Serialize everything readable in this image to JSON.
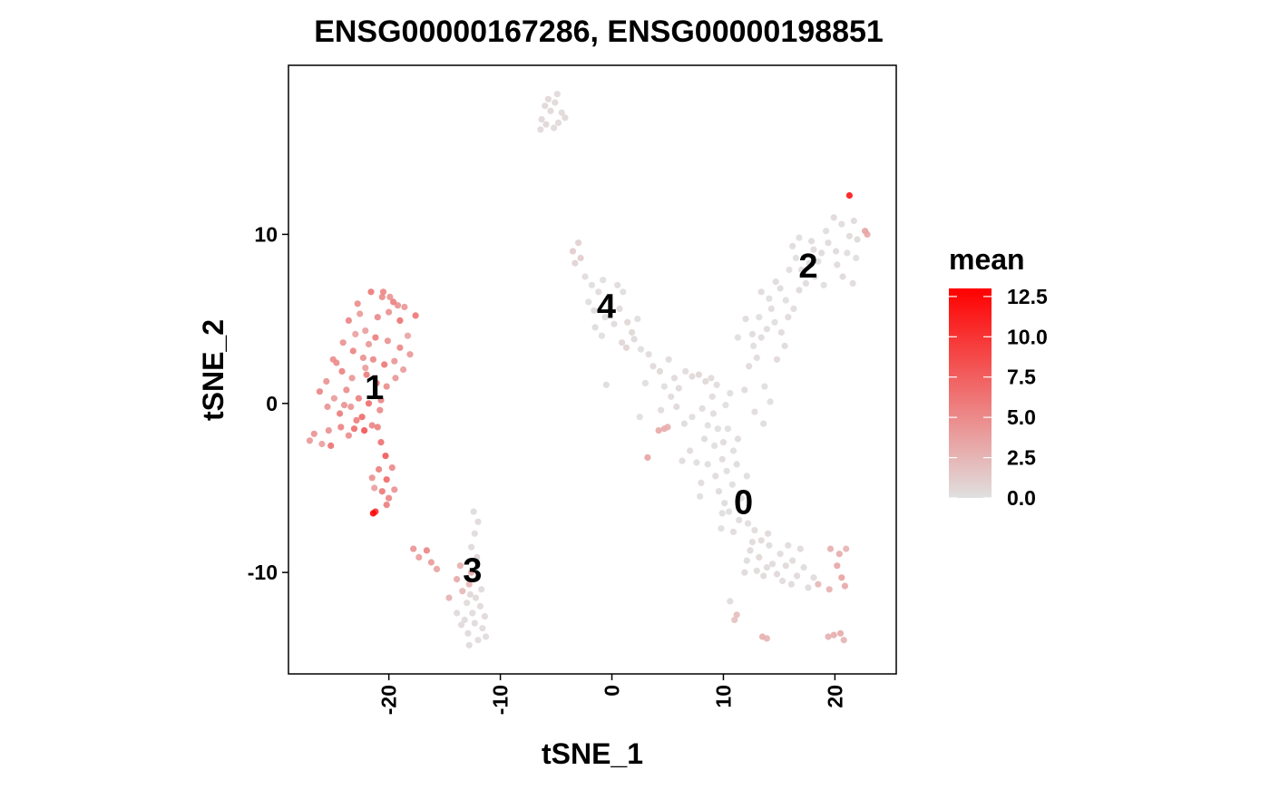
{
  "chart_data": {
    "type": "scatter",
    "title": "ENSG00000167286, ENSG00000198851",
    "xlabel": "tSNE_1",
    "ylabel": "tSNE_2",
    "xlim": [
      -29,
      25.5
    ],
    "ylim": [
      -16,
      20
    ],
    "x_ticks": [
      -20,
      -10,
      0,
      10,
      20
    ],
    "y_ticks": [
      -10,
      0,
      10
    ],
    "x_tick_labels": [
      "-20",
      "-10",
      "0",
      "10",
      "20"
    ],
    "y_tick_labels": [
      "-10",
      "0",
      "10"
    ],
    "grid": false,
    "legend": {
      "title": "mean",
      "position": "right",
      "min": 0,
      "max": 13,
      "ticks": [
        0,
        2.5,
        5,
        7.5,
        10,
        12.5
      ],
      "tick_labels": [
        "0.0",
        "2.5",
        "5.0",
        "7.5",
        "10.0",
        "12.5"
      ],
      "color_low": "#e0e0e0",
      "color_high": "#ff0000"
    },
    "cluster_labels": [
      {
        "label": "0",
        "x": 11.8,
        "y": -5.9
      },
      {
        "label": "1",
        "x": -21.3,
        "y": 0.9
      },
      {
        "label": "2",
        "x": 17.6,
        "y": 8.1
      },
      {
        "label": "3",
        "x": -12.5,
        "y": -9.9
      },
      {
        "label": "4",
        "x": -0.5,
        "y": 5.7
      }
    ],
    "points": [
      [
        -5.5,
        17.3,
        0.5
      ],
      [
        -6.3,
        16.8,
        0.5
      ],
      [
        -4.8,
        16.6,
        0.4
      ],
      [
        -5.1,
        17.8,
        0.5
      ],
      [
        -4.5,
        17.2,
        0.4
      ],
      [
        -6.0,
        17.6,
        0.5
      ],
      [
        -5.2,
        16.3,
        0.4
      ],
      [
        -4.2,
        16.9,
        0.5
      ],
      [
        -6.4,
        16.2,
        0.4
      ],
      [
        -5.7,
        18.0,
        0.5
      ],
      [
        -4.9,
        18.3,
        0.4
      ],
      [
        -5.9,
        16.5,
        0.5
      ],
      [
        -3.5,
        9.0,
        1.2
      ],
      [
        -3.0,
        9.5,
        1.0
      ],
      [
        -2.8,
        8.6,
        1.1
      ],
      [
        -3.3,
        8.3,
        0.8
      ],
      [
        -2.4,
        7.5,
        0.3
      ],
      [
        -1.8,
        7.0,
        0.2
      ],
      [
        -1.2,
        6.6,
        0.3
      ],
      [
        -0.8,
        7.3,
        0.2
      ],
      [
        -0.2,
        6.2,
        0.4
      ],
      [
        0.5,
        7.0,
        0.3
      ],
      [
        1.0,
        6.6,
        0.2
      ],
      [
        0.7,
        5.6,
        0.3
      ],
      [
        -0.6,
        5.1,
        0.2
      ],
      [
        0.2,
        4.7,
        0.3
      ],
      [
        1.4,
        4.8,
        0.6
      ],
      [
        1.8,
        4.2,
        0.5
      ],
      [
        2.3,
        5.0,
        0.2
      ],
      [
        -1.5,
        4.5,
        0.3
      ],
      [
        -0.9,
        4.0,
        0.2
      ],
      [
        0.9,
        3.6,
        0.6
      ],
      [
        1.3,
        3.3,
        0.7
      ],
      [
        2.0,
        3.8,
        0.4
      ],
      [
        2.6,
        3.2,
        0.2
      ],
      [
        -2.1,
        6.0,
        0.2
      ],
      [
        -1.6,
        5.5,
        0.3
      ],
      [
        3.3,
        2.9,
        0.3
      ],
      [
        3.7,
        2.2,
        0.4
      ],
      [
        4.3,
        1.9,
        0.5
      ],
      [
        5.1,
        2.6,
        0.3
      ],
      [
        5.6,
        1.5,
        0.4
      ],
      [
        4.7,
        1.0,
        0.2
      ],
      [
        5.3,
        0.4,
        0.3
      ],
      [
        6.0,
        0.9,
        0.4
      ],
      [
        5.8,
        -0.2,
        0.5
      ],
      [
        6.6,
        1.9,
        0.3
      ],
      [
        7.2,
        1.6,
        0.4
      ],
      [
        7.8,
        1.7,
        0.6
      ],
      [
        8.4,
        1.3,
        0.5
      ],
      [
        8.9,
        1.5,
        0.3
      ],
      [
        9.4,
        1.1,
        0.3
      ],
      [
        4.4,
        -0.4,
        0.3
      ],
      [
        4.2,
        -1.6,
        3.2
      ],
      [
        4.7,
        -1.5,
        3.0
      ],
      [
        5.0,
        -1.4,
        2.8
      ],
      [
        2.5,
        -0.8,
        0.2
      ],
      [
        3.0,
        1.2,
        0.2
      ],
      [
        3.2,
        -3.2,
        3.5
      ],
      [
        -0.5,
        1.1,
        0.3
      ],
      [
        7.2,
        -0.8,
        0.2
      ],
      [
        8.1,
        -0.3,
        0.3
      ],
      [
        8.6,
        -1.3,
        0.2
      ],
      [
        9.1,
        -0.6,
        0.3
      ],
      [
        9.5,
        -1.5,
        0.2
      ],
      [
        8.3,
        -2.1,
        0.3
      ],
      [
        9.2,
        -2.5,
        0.2
      ],
      [
        10.0,
        -2.3,
        0.3
      ],
      [
        10.4,
        -1.5,
        0.2
      ],
      [
        10.9,
        -2.8,
        0.2
      ],
      [
        9.9,
        -3.3,
        0.3
      ],
      [
        8.6,
        -3.6,
        0.2
      ],
      [
        9.3,
        -4.3,
        0.3
      ],
      [
        10.3,
        -4.0,
        0.2
      ],
      [
        11.2,
        -3.6,
        0.3
      ],
      [
        10.8,
        -4.8,
        0.2
      ],
      [
        9.6,
        -5.2,
        0.3
      ],
      [
        11.6,
        -5.6,
        0.2
      ],
      [
        10.5,
        -6.4,
        0.2
      ],
      [
        11.4,
        -6.9,
        0.3
      ],
      [
        12.2,
        -7.1,
        0.2
      ],
      [
        9.9,
        -6.5,
        0.2
      ],
      [
        10.9,
        -7.6,
        0.3
      ],
      [
        7.0,
        -2.8,
        0.3
      ],
      [
        7.6,
        -3.5,
        0.2
      ],
      [
        8.0,
        -4.7,
        0.3
      ],
      [
        10.2,
        -0.1,
        0.2
      ],
      [
        10.6,
        0.6,
        0.2
      ],
      [
        11.3,
        -2.1,
        0.3
      ],
      [
        12.1,
        -4.3,
        0.2
      ],
      [
        9.0,
        0.4,
        0.3
      ],
      [
        9.8,
        -7.4,
        0.2
      ],
      [
        6.5,
        -1.2,
        0.3
      ],
      [
        7.9,
        -5.5,
        0.2
      ],
      [
        6.3,
        -3.4,
        0.3
      ],
      [
        10.1,
        -5.9,
        0.3
      ],
      [
        12.8,
        -7.5,
        0.3
      ],
      [
        13.4,
        -8.1,
        0.4
      ],
      [
        14.1,
        -8.4,
        0.3
      ],
      [
        12.4,
        -8.7,
        0.4
      ],
      [
        13.2,
        -9.1,
        0.5
      ],
      [
        14.4,
        -9.5,
        0.4
      ],
      [
        15.1,
        -8.9,
        0.3
      ],
      [
        15.6,
        -9.6,
        0.4
      ],
      [
        16.2,
        -9.3,
        0.3
      ],
      [
        14.8,
        -10.1,
        0.5
      ],
      [
        16.6,
        -10.2,
        0.4
      ],
      [
        17.2,
        -9.7,
        0.3
      ],
      [
        16.1,
        -10.7,
        0.4
      ],
      [
        17.6,
        -10.9,
        0.3
      ],
      [
        15.3,
        -10.5,
        0.3
      ],
      [
        13.6,
        -10.2,
        0.4
      ],
      [
        12.1,
        -9.3,
        0.3
      ],
      [
        11.9,
        -10.0,
        0.4
      ],
      [
        13.0,
        -9.9,
        0.3
      ],
      [
        14.0,
        -7.7,
        0.4
      ],
      [
        18.1,
        -10.3,
        0.3
      ],
      [
        16.9,
        -8.6,
        0.4
      ],
      [
        15.8,
        -8.4,
        0.3
      ],
      [
        13.9,
        -9.7,
        0.4
      ],
      [
        12.6,
        -8.2,
        0.3
      ],
      [
        19.6,
        -8.6,
        2.8
      ],
      [
        20.4,
        -8.9,
        3.0
      ],
      [
        21.0,
        -8.6,
        2.5
      ],
      [
        20.2,
        -9.6,
        3.3
      ],
      [
        20.6,
        -10.3,
        3.6
      ],
      [
        20.9,
        -10.8,
        3.2
      ],
      [
        19.5,
        -11.0,
        2.6
      ],
      [
        18.5,
        -10.7,
        2.4
      ],
      [
        19.9,
        -13.7,
        2.9
      ],
      [
        20.5,
        -13.6,
        3.1
      ],
      [
        19.4,
        -13.8,
        2.7
      ],
      [
        20.8,
        -14.0,
        2.5
      ],
      [
        13.5,
        -13.8,
        2.8
      ],
      [
        13.9,
        -13.9,
        2.5
      ],
      [
        10.6,
        -11.7,
        0.3
      ],
      [
        11.2,
        -12.5,
        2.0
      ],
      [
        11.0,
        -12.8,
        1.8
      ],
      [
        11.9,
        0.8,
        0.3
      ],
      [
        12.3,
        2.2,
        0.4
      ],
      [
        13.0,
        2.7,
        0.3
      ],
      [
        12.7,
        3.4,
        0.2
      ],
      [
        13.4,
        3.9,
        0.3
      ],
      [
        13.9,
        4.4,
        0.3
      ],
      [
        14.6,
        4.8,
        0.2
      ],
      [
        15.2,
        4.2,
        0.3
      ],
      [
        15.8,
        5.1,
        0.4
      ],
      [
        14.3,
        5.6,
        0.3
      ],
      [
        15.6,
        6.1,
        0.2
      ],
      [
        16.3,
        5.6,
        0.3
      ],
      [
        16.8,
        6.7,
        0.4
      ],
      [
        15.1,
        6.8,
        0.3
      ],
      [
        14.1,
        6.2,
        0.2
      ],
      [
        17.4,
        7.1,
        0.3
      ],
      [
        18.2,
        7.5,
        0.4
      ],
      [
        17.7,
        8.3,
        0.3
      ],
      [
        16.5,
        8.6,
        0.2
      ],
      [
        18.8,
        8.9,
        0.3
      ],
      [
        19.4,
        9.5,
        0.4
      ],
      [
        20.1,
        9.0,
        0.3
      ],
      [
        19.2,
        10.2,
        0.2
      ],
      [
        20.6,
        10.6,
        0.3
      ],
      [
        21.3,
        9.9,
        0.4
      ],
      [
        20.2,
        8.2,
        0.3
      ],
      [
        18.5,
        8.4,
        0.2
      ],
      [
        16.2,
        9.3,
        0.3
      ],
      [
        16.8,
        9.8,
        0.2
      ],
      [
        17.9,
        9.6,
        0.3
      ],
      [
        19.9,
        11.0,
        0.4
      ],
      [
        21.7,
        10.8,
        0.3
      ],
      [
        21.1,
        8.9,
        0.2
      ],
      [
        21.6,
        7.1,
        0.3
      ],
      [
        20.7,
        7.5,
        0.4
      ],
      [
        22.7,
        10.2,
        3.5
      ],
      [
        22.9,
        10.0,
        3.2
      ],
      [
        21.3,
        12.3,
        11.5
      ],
      [
        13.7,
        1.0,
        0.2
      ],
      [
        13.6,
        -1.2,
        0.3
      ],
      [
        14.2,
        0.1,
        0.2
      ],
      [
        12.8,
        -0.5,
        0.3
      ],
      [
        14.8,
        2.6,
        0.4
      ],
      [
        15.5,
        3.4,
        0.3
      ],
      [
        13.2,
        5.1,
        0.2
      ],
      [
        12.6,
        4.1,
        0.3
      ],
      [
        11.3,
        3.9,
        0.2
      ],
      [
        12.0,
        5.0,
        0.3
      ],
      [
        13.4,
        6.6,
        0.4
      ],
      [
        14.7,
        7.2,
        0.3
      ],
      [
        15.9,
        7.9,
        0.2
      ],
      [
        17.0,
        7.9,
        0.3
      ],
      [
        19.0,
        7.0,
        0.2
      ],
      [
        18.1,
        9.1,
        0.3
      ],
      [
        21.9,
        8.6,
        0.2
      ],
      [
        22.0,
        9.7,
        0.4
      ],
      [
        -21.6,
        6.6,
        6.0
      ],
      [
        -20.6,
        6.3,
        4.8
      ],
      [
        -19.6,
        6.0,
        5.5
      ],
      [
        -18.6,
        5.7,
        4.2
      ],
      [
        -17.6,
        5.2,
        6.1
      ],
      [
        -21.0,
        5.1,
        5.0
      ],
      [
        -20.0,
        5.4,
        4.5
      ],
      [
        -19.0,
        4.9,
        6.3
      ],
      [
        -22.6,
        5.3,
        4.0
      ],
      [
        -23.6,
        4.9,
        5.2
      ],
      [
        -22.1,
        4.3,
        3.8
      ],
      [
        -21.2,
        3.9,
        5.6
      ],
      [
        -20.1,
        3.7,
        4.6
      ],
      [
        -19.0,
        3.3,
        5.0
      ],
      [
        -18.1,
        2.9,
        4.2
      ],
      [
        -24.1,
        3.6,
        4.4
      ],
      [
        -23.2,
        3.1,
        5.3
      ],
      [
        -22.3,
        2.7,
        4.6
      ],
      [
        -21.4,
        2.6,
        5.1
      ],
      [
        -20.4,
        2.3,
        5.9
      ],
      [
        -19.5,
        2.5,
        4.3
      ],
      [
        -25.0,
        2.6,
        4.7
      ],
      [
        -24.2,
        1.9,
        5.4
      ],
      [
        -23.3,
        1.5,
        4.1
      ],
      [
        -22.0,
        1.7,
        5.7
      ],
      [
        -21.1,
        1.2,
        6.4
      ],
      [
        -20.2,
        1.0,
        4.8
      ],
      [
        -25.6,
        1.3,
        4.5
      ],
      [
        -26.2,
        0.7,
        5.2
      ],
      [
        -24.9,
        0.3,
        3.9
      ],
      [
        -23.8,
        0.8,
        4.8
      ],
      [
        -22.7,
        0.3,
        5.5
      ],
      [
        -21.8,
        0.0,
        6.6
      ],
      [
        -20.8,
        -0.4,
        5.0
      ],
      [
        -25.5,
        -0.2,
        4.4
      ],
      [
        -24.4,
        -0.6,
        5.8
      ],
      [
        -23.4,
        -0.2,
        4.3
      ],
      [
        -22.4,
        -0.8,
        6.8
      ],
      [
        -21.5,
        -1.3,
        5.3
      ],
      [
        -26.7,
        -1.8,
        4.5
      ],
      [
        -26.0,
        -2.4,
        3.8
      ],
      [
        -25.4,
        -1.6,
        4.6
      ],
      [
        -24.3,
        -1.4,
        5.4
      ],
      [
        -23.1,
        -1.5,
        6.6
      ],
      [
        -22.2,
        -1.6,
        8.0
      ],
      [
        -21.0,
        -1.4,
        5.5
      ],
      [
        -27.1,
        -2.2,
        4.2
      ],
      [
        -25.2,
        -2.5,
        6.3
      ],
      [
        -23.6,
        -1.9,
        4.8
      ],
      [
        -20.7,
        -2.3,
        6.4
      ],
      [
        -20.3,
        -3.1,
        7.7
      ],
      [
        -20.9,
        -3.9,
        5.6
      ],
      [
        -20.2,
        -4.5,
        6.8
      ],
      [
        -19.7,
        -3.8,
        5.0
      ],
      [
        -19.5,
        -5.1,
        4.4
      ],
      [
        -20.6,
        -5.2,
        5.9
      ],
      [
        -21.5,
        -4.4,
        4.6
      ],
      [
        -21.3,
        -5.0,
        3.8
      ],
      [
        -20.0,
        -5.6,
        5.3
      ],
      [
        -21.2,
        -6.4,
        10.0
      ],
      [
        -21.4,
        -6.5,
        12.5
      ],
      [
        -20.2,
        -6.0,
        5.6
      ],
      [
        -22.1,
        2.1,
        3.9
      ],
      [
        -18.3,
        4.0,
        3.5
      ],
      [
        -23.0,
        4.1,
        3.6
      ],
      [
        -24.7,
        2.4,
        4.9
      ],
      [
        -22.9,
        -1.0,
        5.7
      ],
      [
        -19.4,
        1.5,
        4.2
      ],
      [
        -18.7,
        2.0,
        3.9
      ],
      [
        -19.2,
        5.8,
        4.6
      ],
      [
        -21.8,
        3.5,
        4.1
      ],
      [
        -20.7,
        0.2,
        5.3
      ],
      [
        -24.0,
        -0.1,
        4.4
      ],
      [
        -22.8,
        5.9,
        4.8
      ],
      [
        -20.5,
        6.6,
        5.1
      ],
      [
        -19.9,
        6.3,
        4.3
      ],
      [
        -17.8,
        -8.6,
        4.5
      ],
      [
        -17.3,
        -9.1,
        3.8
      ],
      [
        -16.6,
        -8.7,
        5.2
      ],
      [
        -16.2,
        -9.4,
        4.0
      ],
      [
        -15.7,
        -9.8,
        3.5
      ],
      [
        -13.6,
        -9.6,
        2.8
      ],
      [
        -13.9,
        -10.4,
        3.2
      ],
      [
        -12.8,
        -10.7,
        2.5
      ],
      [
        -12.6,
        -10.0,
        3.0
      ],
      [
        -13.4,
        -11.1,
        2.2
      ],
      [
        -12.2,
        -11.5,
        0.4
      ],
      [
        -13.0,
        -11.8,
        0.3
      ],
      [
        -11.8,
        -12.0,
        0.4
      ],
      [
        -12.5,
        -12.4,
        0.3
      ],
      [
        -11.4,
        -12.6,
        0.4
      ],
      [
        -13.2,
        -12.8,
        0.3
      ],
      [
        -12.3,
        -13.0,
        0.4
      ],
      [
        -11.6,
        -13.3,
        0.3
      ],
      [
        -12.9,
        -13.6,
        0.4
      ],
      [
        -12.0,
        -14.0,
        0.3
      ],
      [
        -12.8,
        -14.3,
        0.4
      ],
      [
        -11.3,
        -13.8,
        0.3
      ],
      [
        -13.5,
        -13.1,
        0.4
      ],
      [
        -12.1,
        -9.1,
        0.5
      ],
      [
        -12.6,
        -8.5,
        0.4
      ],
      [
        -12.3,
        -7.7,
        0.3
      ],
      [
        -12.0,
        -7.0,
        0.4
      ],
      [
        -12.4,
        -6.4,
        0.3
      ],
      [
        -14.6,
        -11.5,
        2.6
      ],
      [
        -13.9,
        -12.4,
        0.4
      ],
      [
        -11.7,
        -11.0,
        0.3
      ],
      [
        -12.7,
        -11.3,
        0.5
      ]
    ]
  }
}
